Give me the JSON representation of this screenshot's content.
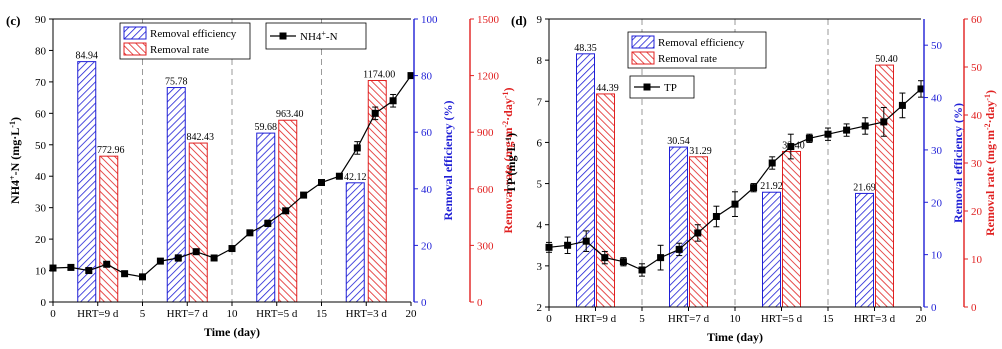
{
  "colors": {
    "axis": "#000000",
    "blue": "#1f1fd6",
    "red": "#e02020",
    "line": "#000000",
    "divider": "#9a9a9a"
  },
  "icons": {
    "series_marker": "filled-square-marker"
  },
  "chart_data": [
    {
      "panel_label": "(c)",
      "type": "bar+line",
      "xlabel": "Time (day)",
      "ylabel_left": "NH4+-N (mg·L-1)",
      "ylabel_right_blue": "Removal efficiency (%)",
      "ylabel_right_red": "Removal rate (mg·m-2·day-1)",
      "xlim": [
        0,
        20
      ],
      "ylim_left": [
        0,
        90
      ],
      "ylim_blue": [
        0,
        100
      ],
      "ylim_red": [
        0,
        1500
      ],
      "x_ticks": [
        {
          "x": 0,
          "label": "0"
        },
        {
          "x": 2.5,
          "label": "HRT=9 d"
        },
        {
          "x": 5,
          "label": "5"
        },
        {
          "x": 7.5,
          "label": "HRT=7 d"
        },
        {
          "x": 10,
          "label": "10"
        },
        {
          "x": 12.5,
          "label": "HRT=5 d"
        },
        {
          "x": 15,
          "label": "15"
        },
        {
          "x": 17.5,
          "label": "HRT=3 d"
        },
        {
          "x": 20,
          "label": "20"
        }
      ],
      "left_ticks": [
        "0",
        "10",
        "20",
        "30",
        "40",
        "50",
        "60",
        "70",
        "80",
        "90"
      ],
      "blue_ticks": [
        "0",
        "20",
        "40",
        "60",
        "80",
        "100"
      ],
      "red_ticks": [
        "0",
        "300",
        "600",
        "900",
        "1200",
        "1500"
      ],
      "dividers": [
        5,
        10,
        15
      ],
      "categories": [
        "HRT=9 d",
        "HRT=7 d",
        "HRT=5 d",
        "HRT=3 d"
      ],
      "bar_centers": [
        2.5,
        7.5,
        12.5,
        17.5
      ],
      "bars": [
        {
          "name": "Removal efficiency",
          "axis": "blue",
          "values": [
            84.94,
            75.78,
            59.68,
            42.12
          ],
          "labels": [
            "84.94",
            "75.78",
            "59.68",
            "42.12"
          ]
        },
        {
          "name": "Removal rate",
          "axis": "red",
          "values": [
            772.96,
            842.43,
            963.4,
            1174.0
          ],
          "labels": [
            "772.96",
            "842.43",
            "963.40",
            "1174.00"
          ]
        }
      ],
      "line": {
        "name": "NH4+-N",
        "x": [
          0,
          1,
          2,
          3,
          4,
          5,
          6,
          7,
          8,
          9,
          10,
          11,
          12,
          13,
          14,
          15,
          16,
          17,
          18,
          19,
          20
        ],
        "y": [
          10.8,
          11,
          10,
          12,
          9,
          8,
          13,
          14,
          16,
          14,
          17,
          22,
          25,
          29,
          34,
          38,
          40,
          49,
          60,
          64,
          72
        ],
        "err": [
          0.4,
          0.4,
          0.6,
          0.6,
          0.4,
          0.4,
          0.4,
          1.0,
          0.8,
          0.6,
          0.6,
          0.6,
          1.0,
          0.8,
          0.6,
          0.4,
          0.6,
          2.0,
          2.0,
          2.0,
          0.6
        ]
      },
      "legend": {
        "bars": [
          "Removal efficiency",
          "Removal rate"
        ],
        "line": "NH4+-N",
        "placement": "top-center"
      }
    },
    {
      "panel_label": "(d)",
      "type": "bar+line",
      "xlabel": "Time (day)",
      "ylabel_left": "TP (mg·L-1)",
      "ylabel_right_blue": "Removal efficiency (%)",
      "ylabel_right_red": "Removal rate (mg·m-2·day-1)",
      "xlim": [
        0,
        20
      ],
      "ylim_left": [
        2,
        9
      ],
      "ylim_blue": [
        0,
        55
      ],
      "ylim_red": [
        0,
        60
      ],
      "x_ticks": [
        {
          "x": 0,
          "label": "0"
        },
        {
          "x": 2.5,
          "label": "HRT=9 d"
        },
        {
          "x": 5,
          "label": "5"
        },
        {
          "x": 7.5,
          "label": "HRT=7 d"
        },
        {
          "x": 10,
          "label": "10"
        },
        {
          "x": 12.5,
          "label": "HRT=5 d"
        },
        {
          "x": 15,
          "label": "15"
        },
        {
          "x": 17.5,
          "label": "HRT=3 d"
        },
        {
          "x": 20,
          "label": "20"
        }
      ],
      "left_ticks": [
        "2",
        "3",
        "4",
        "5",
        "6",
        "7",
        "8",
        "9"
      ],
      "blue_ticks": [
        "0",
        "10",
        "20",
        "30",
        "40",
        "50"
      ],
      "red_ticks": [
        "0",
        "10",
        "20",
        "30",
        "40",
        "50",
        "60"
      ],
      "dividers": [
        5,
        10,
        15
      ],
      "categories": [
        "HRT=9 d",
        "HRT=7 d",
        "HRT=5 d",
        "HRT=3 d"
      ],
      "bar_centers": [
        2.5,
        7.5,
        12.5,
        17.5
      ],
      "bars": [
        {
          "name": "Removal efficiency",
          "axis": "blue",
          "values": [
            48.35,
            30.54,
            21.92,
            21.69
          ],
          "labels": [
            "48.35",
            "30.54",
            "21.92",
            "21.69"
          ]
        },
        {
          "name": "Removal rate",
          "axis": "red",
          "values": [
            44.39,
            31.29,
            32.4,
            50.4
          ],
          "labels": [
            "44.39",
            "31.29",
            "32.40",
            "50.40"
          ]
        }
      ],
      "line": {
        "name": "TP",
        "x": [
          0,
          1,
          2,
          3,
          4,
          5,
          6,
          7,
          8,
          9,
          10,
          11,
          12,
          13,
          14,
          15,
          16,
          17,
          18,
          19,
          20
        ],
        "y": [
          3.45,
          3.5,
          3.6,
          3.2,
          3.1,
          2.9,
          3.2,
          3.4,
          3.8,
          4.2,
          4.5,
          4.9,
          5.5,
          5.9,
          6.1,
          6.2,
          6.3,
          6.4,
          6.5,
          6.9,
          7.3
        ],
        "err": [
          0.12,
          0.2,
          0.25,
          0.15,
          0.1,
          0.15,
          0.3,
          0.15,
          0.2,
          0.25,
          0.3,
          0.1,
          0.15,
          0.3,
          0.1,
          0.15,
          0.15,
          0.2,
          0.35,
          0.3,
          0.2
        ]
      },
      "legend": {
        "bars": [
          "Removal efficiency",
          "Removal rate"
        ],
        "line": "TP",
        "placement": "top-left"
      }
    }
  ]
}
